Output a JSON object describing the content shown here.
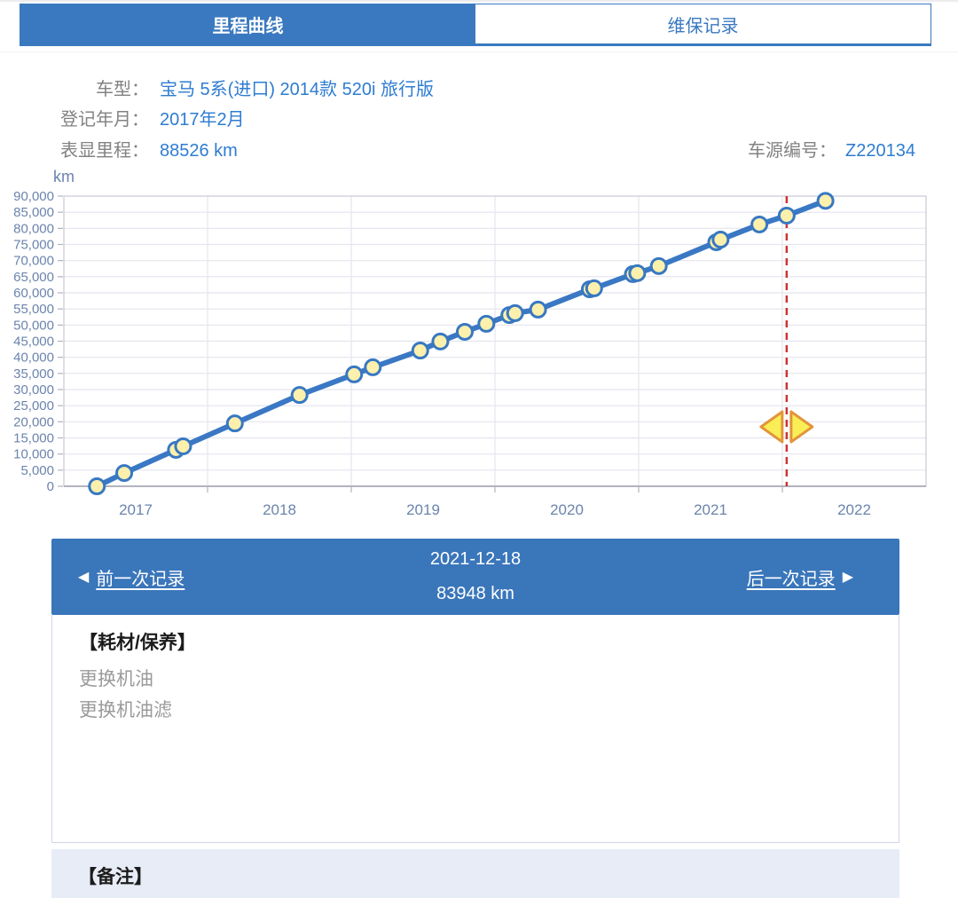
{
  "tabs": [
    {
      "label": "里程曲线",
      "active": true
    },
    {
      "label": "维保记录",
      "active": false
    }
  ],
  "info": {
    "model_label": "车型：",
    "model_value": "宝马 5系(进口) 2014款 520i 旅行版",
    "register_label": "登记年月：",
    "register_value": "2017年2月",
    "mileage_label": "表显里程：",
    "mileage_value": "88526 km",
    "source_label": "车源编号：",
    "source_value": "Z220134"
  },
  "chart_data": {
    "type": "line",
    "unit_label": "km",
    "xlabel": "",
    "ylabel": "km",
    "x_range": [
      2017,
      2023
    ],
    "x_ticks": [
      2017,
      2018,
      2019,
      2020,
      2021,
      2022
    ],
    "y_range": [
      0,
      90000
    ],
    "y_tick_step": 5000,
    "grid": true,
    "series": [
      {
        "name": "mileage-km",
        "points": [
          [
            2017.23,
            0
          ],
          [
            2017.42,
            4100
          ],
          [
            2017.78,
            11300
          ],
          [
            2017.83,
            12400
          ],
          [
            2018.19,
            19500
          ],
          [
            2018.64,
            28300
          ],
          [
            2019.02,
            34700
          ],
          [
            2019.15,
            36900
          ],
          [
            2019.48,
            42100
          ],
          [
            2019.62,
            44900
          ],
          [
            2019.79,
            47900
          ],
          [
            2019.94,
            50400
          ],
          [
            2020.1,
            53100
          ],
          [
            2020.14,
            53700
          ],
          [
            2020.3,
            54800
          ],
          [
            2020.66,
            61100
          ],
          [
            2020.69,
            61400
          ],
          [
            2020.96,
            65800
          ],
          [
            2020.99,
            66100
          ],
          [
            2021.14,
            68300
          ],
          [
            2021.54,
            75700
          ],
          [
            2021.57,
            76500
          ],
          [
            2021.84,
            81200
          ],
          [
            2022.03,
            83948
          ],
          [
            2022.3,
            88526
          ]
        ]
      }
    ],
    "selected_point": {
      "x_year": 2022.03,
      "km": 83948,
      "date": "2021-12-18"
    },
    "colors": {
      "line": "#3a78c4",
      "point_fill": "#fdf0ad",
      "point_stroke": "#3878c2",
      "grid": "#e4e4ee",
      "axis": "#b2b2bf",
      "border": "#c9c9d4",
      "tick_label": "#6b84ad",
      "selected_line": "#cc3333",
      "handle_fill": "#f9ee55",
      "handle_stroke": "#e2953c"
    }
  },
  "record_nav": {
    "prev_arrow": "◀",
    "prev_label": "前一次记录",
    "date": "2021-12-18",
    "mileage": "83948 km",
    "next_label": "后一次记录",
    "next_arrow": "▶",
    "bar_color": "#3a76ba"
  },
  "detail": {
    "section_title": "【耗材/保养】",
    "items": [
      "更换机油",
      "更换机油滤"
    ]
  },
  "remark": {
    "section_title": "【备注】"
  }
}
